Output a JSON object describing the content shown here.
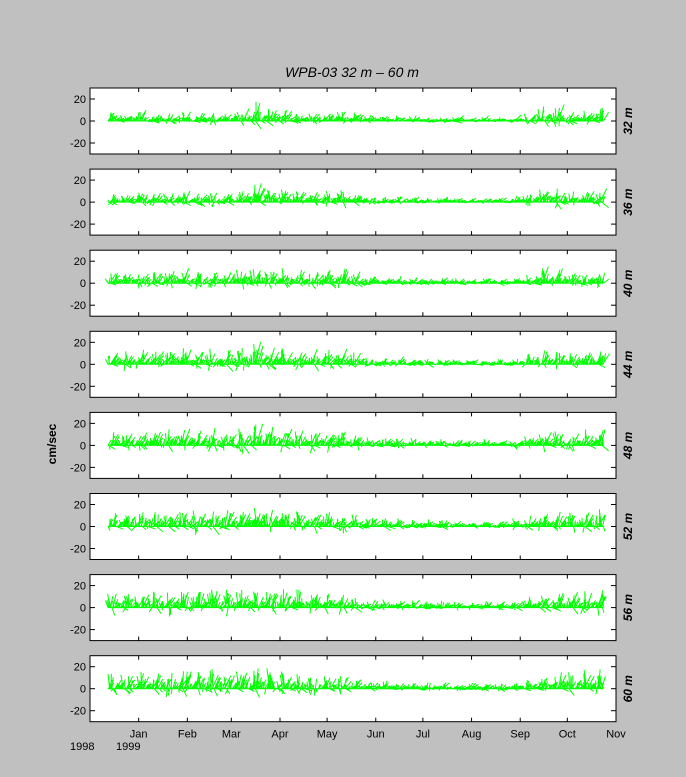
{
  "chart_data": {
    "type": "line",
    "title": "WPB-03   32 m – 60 m",
    "ylabel": "cm/sec",
    "ylim": [
      -30,
      30
    ],
    "yticks": [
      20,
      0,
      -20
    ],
    "x_start_date": "1998-12-01",
    "xlim": [
      "1998-12-01",
      "1999-11-01"
    ],
    "x_tick_labels": [
      "Jan",
      "Feb",
      "Mar",
      "Apr",
      "May",
      "Jun",
      "Jul",
      "Aug",
      "Sep",
      "Oct",
      "Nov"
    ],
    "x_tick_dates": [
      "1999-01-01",
      "1999-02-01",
      "1999-03-01",
      "1999-04-01",
      "1999-05-01",
      "1999-06-01",
      "1999-07-01",
      "1999-08-01",
      "1999-09-01",
      "1999-10-01",
      "1999-11-01"
    ],
    "year_labels": [
      "1998",
      "1999"
    ],
    "series_color": "#00ff00",
    "grid": false,
    "panels": [
      {
        "label": "32 m",
        "amplitude": [
          9,
          7,
          12,
          6,
          8,
          7,
          10,
          6,
          8,
          9,
          7,
          10,
          14,
          18,
          13,
          11,
          10,
          8,
          9,
          10,
          12,
          9,
          7,
          6,
          5,
          6,
          4,
          5,
          3,
          4,
          5,
          4,
          3,
          5,
          4,
          3,
          6,
          8,
          14,
          16,
          12,
          9,
          10,
          13
        ]
      },
      {
        "label": "36 m",
        "amplitude": [
          8,
          9,
          10,
          11,
          9,
          10,
          12,
          9,
          11,
          10,
          9,
          11,
          14,
          18,
          13,
          12,
          11,
          9,
          10,
          12,
          13,
          10,
          8,
          6,
          5,
          6,
          5,
          6,
          4,
          5,
          5,
          4,
          4,
          5,
          4,
          4,
          6,
          9,
          13,
          15,
          12,
          10,
          11,
          13
        ]
      },
      {
        "label": "40 m",
        "amplitude": [
          11,
          10,
          12,
          13,
          12,
          13,
          14,
          12,
          13,
          14,
          12,
          14,
          16,
          20,
          16,
          14,
          13,
          12,
          13,
          14,
          14,
          12,
          9,
          8,
          6,
          7,
          5,
          6,
          5,
          6,
          5,
          5,
          4,
          5,
          5,
          4,
          6,
          9,
          15,
          14,
          12,
          11,
          12,
          14
        ]
      },
      {
        "label": "44 m",
        "amplitude": [
          12,
          13,
          14,
          15,
          14,
          15,
          16,
          14,
          15,
          15,
          14,
          16,
          17,
          21,
          17,
          16,
          15,
          14,
          15,
          15,
          15,
          13,
          10,
          8,
          7,
          8,
          6,
          7,
          6,
          6,
          6,
          5,
          5,
          6,
          5,
          5,
          7,
          10,
          15,
          14,
          13,
          13,
          14,
          15
        ]
      },
      {
        "label": "48 m",
        "amplitude": [
          13,
          14,
          15,
          16,
          15,
          16,
          17,
          15,
          16,
          16,
          15,
          17,
          18,
          21,
          18,
          17,
          16,
          15,
          15,
          16,
          15,
          13,
          10,
          8,
          8,
          8,
          7,
          7,
          6,
          7,
          6,
          6,
          5,
          6,
          5,
          5,
          8,
          11,
          15,
          15,
          14,
          14,
          15,
          16
        ]
      },
      {
        "label": "52 m",
        "amplitude": [
          15,
          16,
          16,
          17,
          16,
          17,
          18,
          17,
          17,
          18,
          17,
          19,
          19,
          20,
          19,
          18,
          17,
          16,
          16,
          16,
          15,
          13,
          10,
          9,
          8,
          8,
          7,
          7,
          7,
          7,
          6,
          6,
          6,
          6,
          5,
          6,
          8,
          11,
          14,
          15,
          15,
          15,
          16,
          17
        ]
      },
      {
        "label": "56 m",
        "amplitude": [
          16,
          17,
          16,
          17,
          17,
          18,
          18,
          18,
          19,
          19,
          18,
          20,
          19,
          19,
          19,
          18,
          17,
          16,
          16,
          15,
          14,
          12,
          10,
          9,
          8,
          8,
          8,
          7,
          7,
          7,
          7,
          6,
          6,
          6,
          6,
          6,
          8,
          10,
          13,
          15,
          16,
          16,
          17,
          18
        ]
      },
      {
        "label": "60 m",
        "amplitude": [
          16,
          17,
          17,
          17,
          18,
          18,
          19,
          18,
          19,
          19,
          19,
          20,
          19,
          19,
          19,
          17,
          16,
          15,
          14,
          14,
          13,
          11,
          9,
          8,
          8,
          7,
          7,
          7,
          7,
          6,
          6,
          6,
          6,
          6,
          6,
          6,
          7,
          9,
          12,
          15,
          17,
          17,
          18,
          19
        ]
      }
    ],
    "data_end_date": "1999-10-24"
  }
}
